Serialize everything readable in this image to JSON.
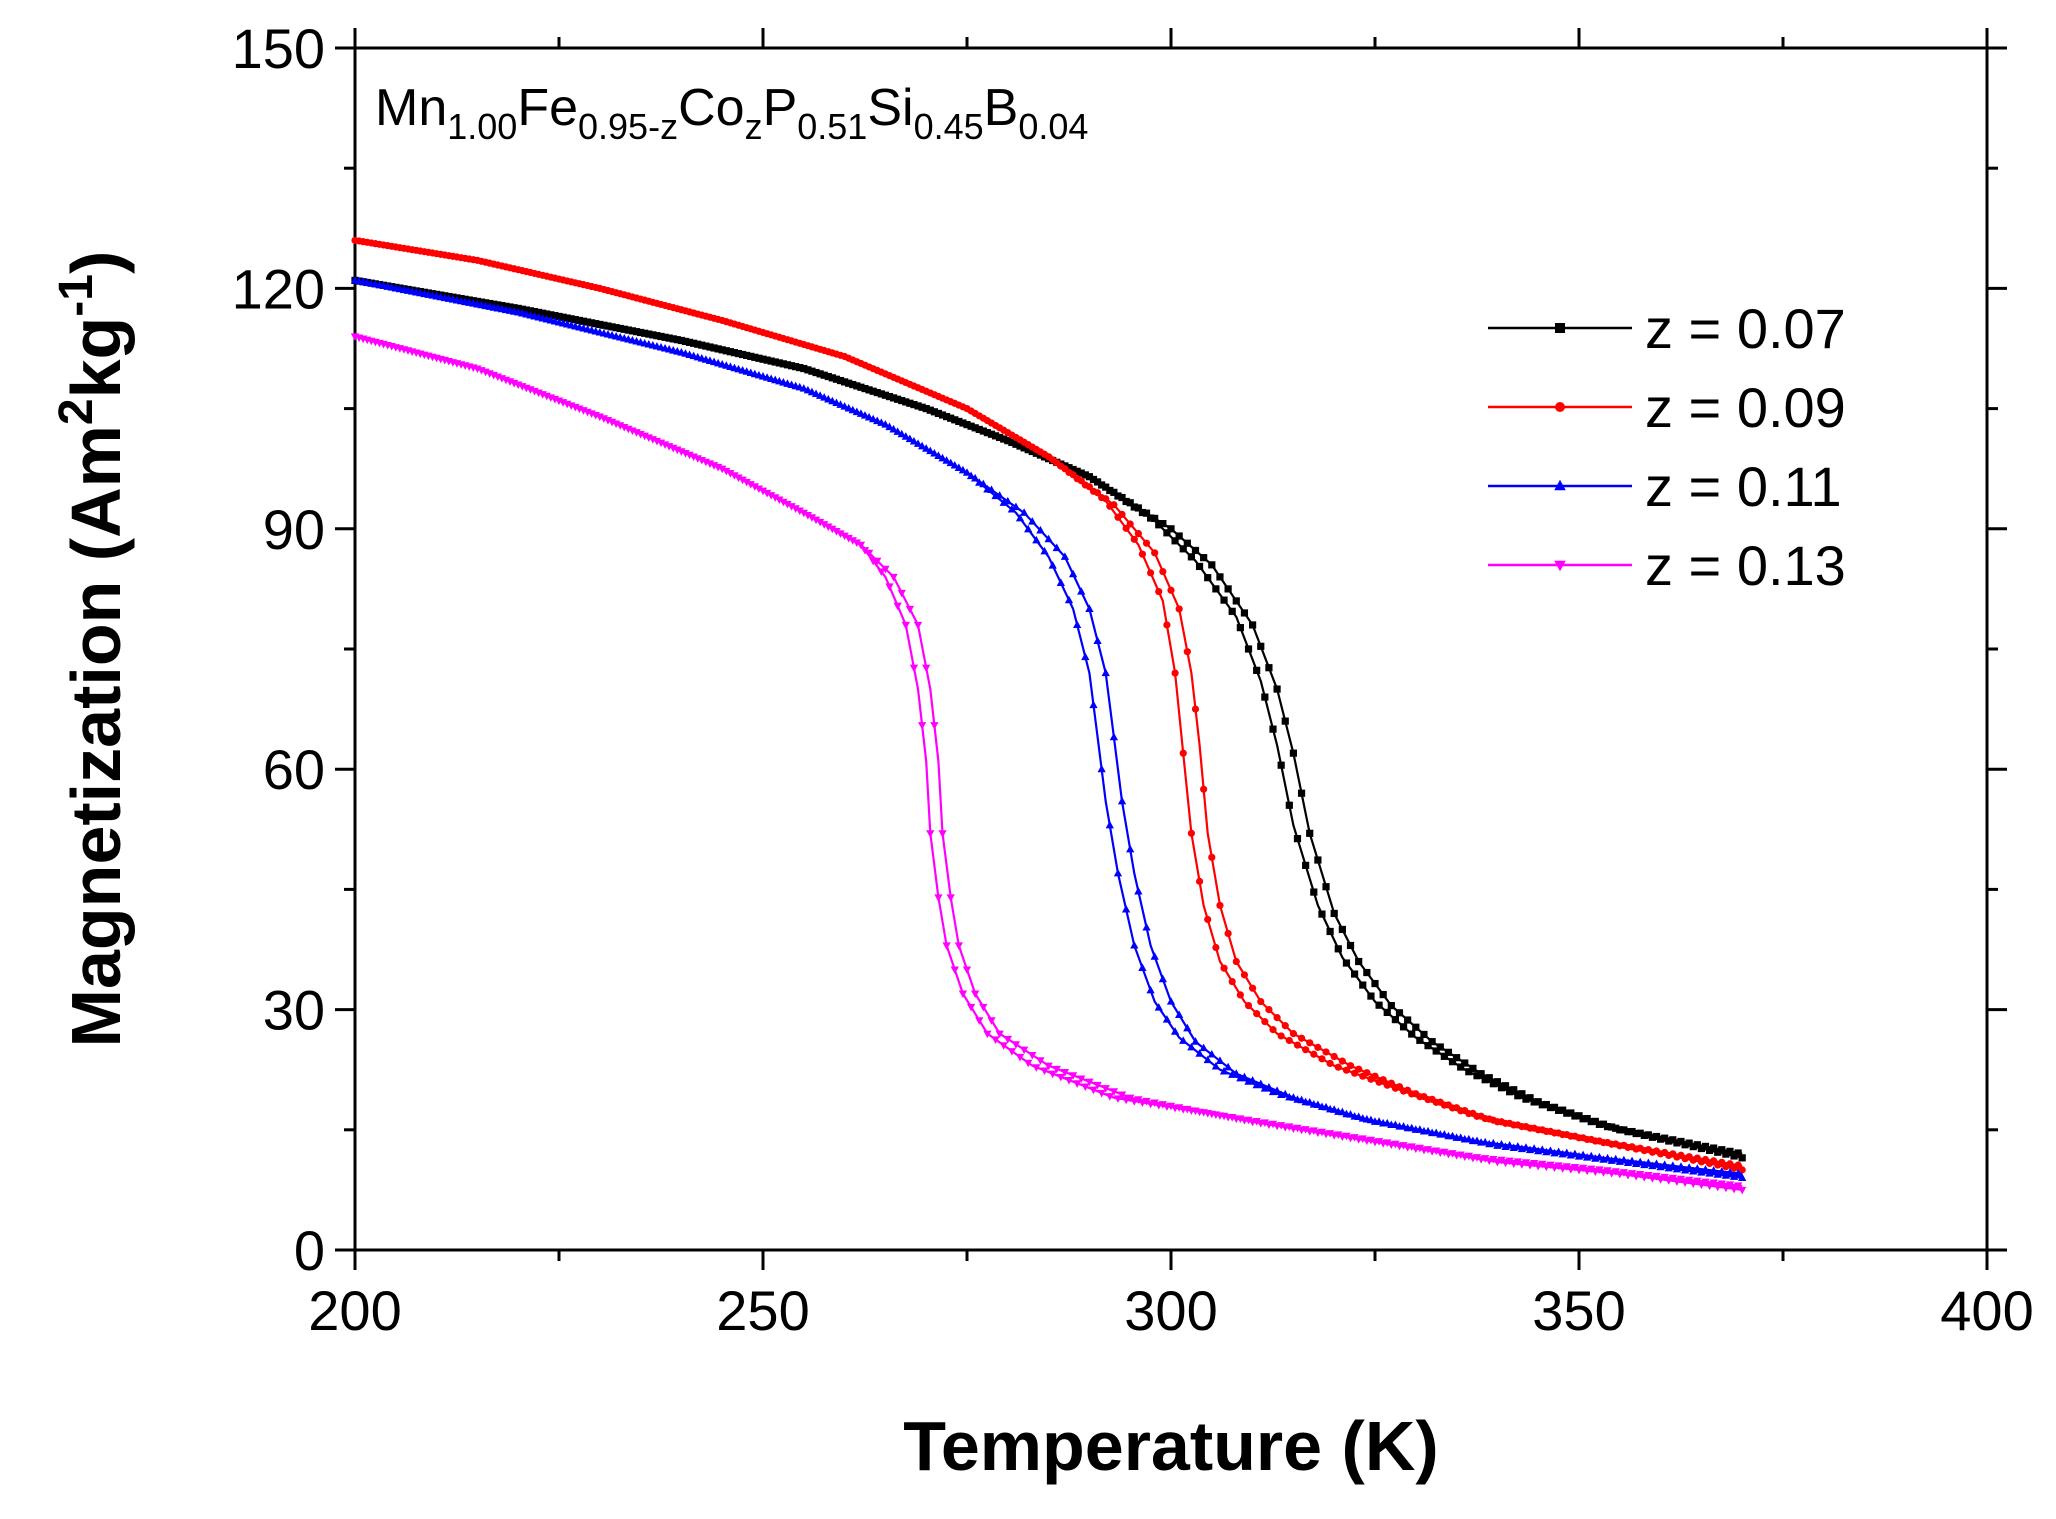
{
  "chart_data": {
    "type": "line",
    "title": "",
    "annotation": {
      "formula_parts": [
        {
          "text": "Mn",
          "sub": false
        },
        {
          "text": "1.00",
          "sub": true
        },
        {
          "text": "Fe",
          "sub": false
        },
        {
          "text": "0.95-z",
          "sub": true
        },
        {
          "text": "Co",
          "sub": false
        },
        {
          "text": "z",
          "sub": true
        },
        {
          "text": "P",
          "sub": false
        },
        {
          "text": "0.51",
          "sub": true
        },
        {
          "text": "Si",
          "sub": false
        },
        {
          "text": "0.45",
          "sub": true
        },
        {
          "text": "B",
          "sub": false
        },
        {
          "text": "0.04",
          "sub": true
        }
      ]
    },
    "xlabel": "Temperature (K)",
    "ylabel_parts": [
      {
        "text": "Magnetization (Am",
        "sup": false
      },
      {
        "text": "2",
        "sup": true
      },
      {
        "text": "kg",
        "sup": false
      },
      {
        "text": "-1",
        "sup": true
      },
      {
        "text": ")",
        "sup": false
      }
    ],
    "xlim": [
      200,
      400
    ],
    "ylim": [
      0,
      150
    ],
    "xticks": [
      200,
      250,
      300,
      350,
      400
    ],
    "yticks": [
      0,
      30,
      60,
      90,
      120,
      150
    ],
    "legend_position": "top-right",
    "series": [
      {
        "name": "z = 0.07",
        "color": "#000000",
        "marker": "square",
        "x_range": [
          200,
          370
        ],
        "curves": [
          [
            [
              200,
              121
            ],
            [
              220,
              117.5
            ],
            [
              240,
              113.5
            ],
            [
              255,
              110
            ],
            [
              270,
              105
            ],
            [
              280,
              101
            ],
            [
              290,
              96.5
            ],
            [
              300,
              90
            ],
            [
              305,
              85.5
            ],
            [
              310,
              78
            ],
            [
              313,
              70
            ],
            [
              315,
              62
            ],
            [
              317,
              52
            ],
            [
              320,
              42
            ],
            [
              323,
              36
            ],
            [
              327,
              30.5
            ],
            [
              332,
              26
            ],
            [
              338,
              22
            ],
            [
              345,
              18.5
            ],
            [
              355,
              15
            ],
            [
              370,
              11.5
            ]
          ],
          [
            [
              200,
              121
            ],
            [
              220,
              117.5
            ],
            [
              240,
              113.5
            ],
            [
              255,
              110
            ],
            [
              270,
              105
            ],
            [
              280,
              101
            ],
            [
              290,
              96.5
            ],
            [
              298,
              91
            ],
            [
              303,
              86
            ],
            [
              308,
              79
            ],
            [
              311,
              71
            ],
            [
              313,
              63
            ],
            [
              315,
              53
            ],
            [
              318,
              43
            ],
            [
              321,
              36.5
            ],
            [
              325,
              31
            ],
            [
              330,
              26.5
            ],
            [
              336,
              22.5
            ],
            [
              343,
              19
            ],
            [
              353,
              15.5
            ],
            [
              370,
              12
            ]
          ]
        ]
      },
      {
        "name": "z = 0.09",
        "color": "#ff0000",
        "marker": "circle",
        "x_range": [
          200,
          370
        ],
        "curves": [
          [
            [
              200,
              126
            ],
            [
              215,
              123.5
            ],
            [
              230,
              120
            ],
            [
              245,
              116
            ],
            [
              260,
              111.5
            ],
            [
              275,
              105
            ],
            [
              285,
              99
            ],
            [
              293,
              93
            ],
            [
              298,
              87
            ],
            [
              301,
              80
            ],
            [
              302.5,
              72
            ],
            [
              303.5,
              63
            ],
            [
              304.5,
              52
            ],
            [
              306,
              43
            ],
            [
              308,
              36
            ],
            [
              311,
              31
            ],
            [
              315,
              27
            ],
            [
              322,
              23
            ],
            [
              330,
              19.5
            ],
            [
              340,
              16
            ],
            [
              355,
              13
            ],
            [
              370,
              10
            ]
          ],
          [
            [
              200,
              126
            ],
            [
              215,
              123.5
            ],
            [
              230,
              120
            ],
            [
              245,
              116
            ],
            [
              260,
              111.5
            ],
            [
              275,
              105
            ],
            [
              285,
              99
            ],
            [
              292,
              93.5
            ],
            [
              296,
              88
            ],
            [
              299,
              81
            ],
            [
              300.5,
              72
            ],
            [
              301.5,
              62
            ],
            [
              302.5,
              52
            ],
            [
              304,
              43
            ],
            [
              306,
              36
            ],
            [
              309,
              31
            ],
            [
              313,
              27
            ],
            [
              320,
              23
            ],
            [
              328,
              20
            ],
            [
              338,
              16.5
            ],
            [
              353,
              13.5
            ],
            [
              370,
              10.5
            ]
          ]
        ]
      },
      {
        "name": "z = 0.11",
        "color": "#0000ff",
        "marker": "triangle-up",
        "x_range": [
          200,
          370
        ],
        "curves": [
          [
            [
              200,
              121
            ],
            [
              220,
              117
            ],
            [
              240,
              112
            ],
            [
              255,
              107.5
            ],
            [
              265,
              103
            ],
            [
              275,
              97
            ],
            [
              282,
              92
            ],
            [
              287,
              86.5
            ],
            [
              290,
              80
            ],
            [
              292,
              72
            ],
            [
              293,
              64
            ],
            [
              294,
              56
            ],
            [
              295.5,
              47
            ],
            [
              297.5,
              38
            ],
            [
              300,
              31
            ],
            [
              303,
              26
            ],
            [
              308,
              22
            ],
            [
              315,
              19
            ],
            [
              325,
              16
            ],
            [
              340,
              13
            ],
            [
              355,
              11
            ],
            [
              370,
              9
            ]
          ],
          [
            [
              200,
              121
            ],
            [
              220,
              117
            ],
            [
              240,
              112
            ],
            [
              255,
              107.5
            ],
            [
              265,
              103
            ],
            [
              275,
              97
            ],
            [
              281,
              92
            ],
            [
              285,
              86.5
            ],
            [
              288,
              80
            ],
            [
              290,
              72
            ],
            [
              291,
              64
            ],
            [
              292,
              56
            ],
            [
              293.5,
              47
            ],
            [
              295.5,
              38
            ],
            [
              298,
              31
            ],
            [
              301,
              26.5
            ],
            [
              306,
              22.5
            ],
            [
              313,
              19.5
            ],
            [
              323,
              16.5
            ],
            [
              338,
              13.5
            ],
            [
              353,
              11.5
            ],
            [
              370,
              9.5
            ]
          ]
        ]
      },
      {
        "name": "z = 0.13",
        "color": "#ff00ff",
        "marker": "triangle-down",
        "x_range": [
          200,
          370
        ],
        "curves": [
          [
            [
              200,
              114
            ],
            [
              215,
              110
            ],
            [
              230,
              104
            ],
            [
              245,
              97.5
            ],
            [
              255,
              92
            ],
            [
              262,
              88
            ],
            [
              266,
              84
            ],
            [
              269,
              78
            ],
            [
              270.5,
              70
            ],
            [
              271.5,
              61
            ],
            [
              272,
              52
            ],
            [
              273,
              44
            ],
            [
              274,
              38
            ],
            [
              276,
              32
            ],
            [
              279,
              27
            ],
            [
              285,
              23
            ],
            [
              295,
              19
            ],
            [
              310,
              16
            ],
            [
              325,
              13.5
            ],
            [
              340,
              11
            ],
            [
              355,
              9.5
            ],
            [
              370,
              7.5
            ]
          ],
          [
            [
              200,
              114
            ],
            [
              215,
              110
            ],
            [
              230,
              104
            ],
            [
              245,
              97.5
            ],
            [
              255,
              92
            ],
            [
              262,
              88
            ],
            [
              265,
              84
            ],
            [
              267.5,
              78
            ],
            [
              269,
              70
            ],
            [
              270,
              61
            ],
            [
              270.5,
              52
            ],
            [
              271.5,
              44
            ],
            [
              272.5,
              38
            ],
            [
              274.5,
              32
            ],
            [
              277.5,
              27
            ],
            [
              283,
              23
            ],
            [
              293,
              19
            ],
            [
              308,
              16.5
            ],
            [
              323,
              14
            ],
            [
              338,
              11.5
            ],
            [
              353,
              10
            ],
            [
              370,
              8
            ]
          ]
        ]
      }
    ]
  }
}
